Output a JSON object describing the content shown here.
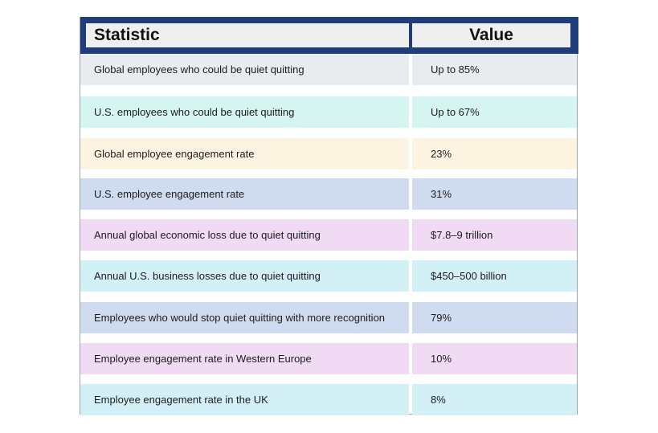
{
  "chart_data": {
    "type": "table",
    "columns": [
      "Statistic",
      "Value"
    ],
    "rows": [
      {
        "statistic": "Global employees who could be quiet quitting",
        "value": "Up to 85%",
        "color": "#e8ecef"
      },
      {
        "statistic": "U.S. employees who could be quiet quitting",
        "value": "Up to 67%",
        "color": "#d5f5f1"
      },
      {
        "statistic": "Global employee engagement rate",
        "value": "23%",
        "color": "#fdf3e1"
      },
      {
        "statistic": "U.S. employee engagement rate",
        "value": "31%",
        "color": "#cfdcf0"
      },
      {
        "statistic": "Annual global economic loss due to quiet quitting",
        "value": "$7.8–9 trillion",
        "color": "#f0daf4"
      },
      {
        "statistic": "Annual U.S. business losses due to quiet quitting",
        "value": "$450–500 billion",
        "color": "#d3f0f7"
      },
      {
        "statistic": "Employees who would stop quiet quitting with more recognition",
        "value": "79%",
        "color": "#cfdcf0"
      },
      {
        "statistic": "Employee engagement rate in Western Europe",
        "value": "10%",
        "color": "#f0daf4"
      },
      {
        "statistic": "Employee engagement rate in the UK",
        "value": "8%",
        "color": "#d3f0f7"
      }
    ]
  },
  "colors": {
    "header_background": "#1f3d7a",
    "header_cell": "#efeff0"
  }
}
